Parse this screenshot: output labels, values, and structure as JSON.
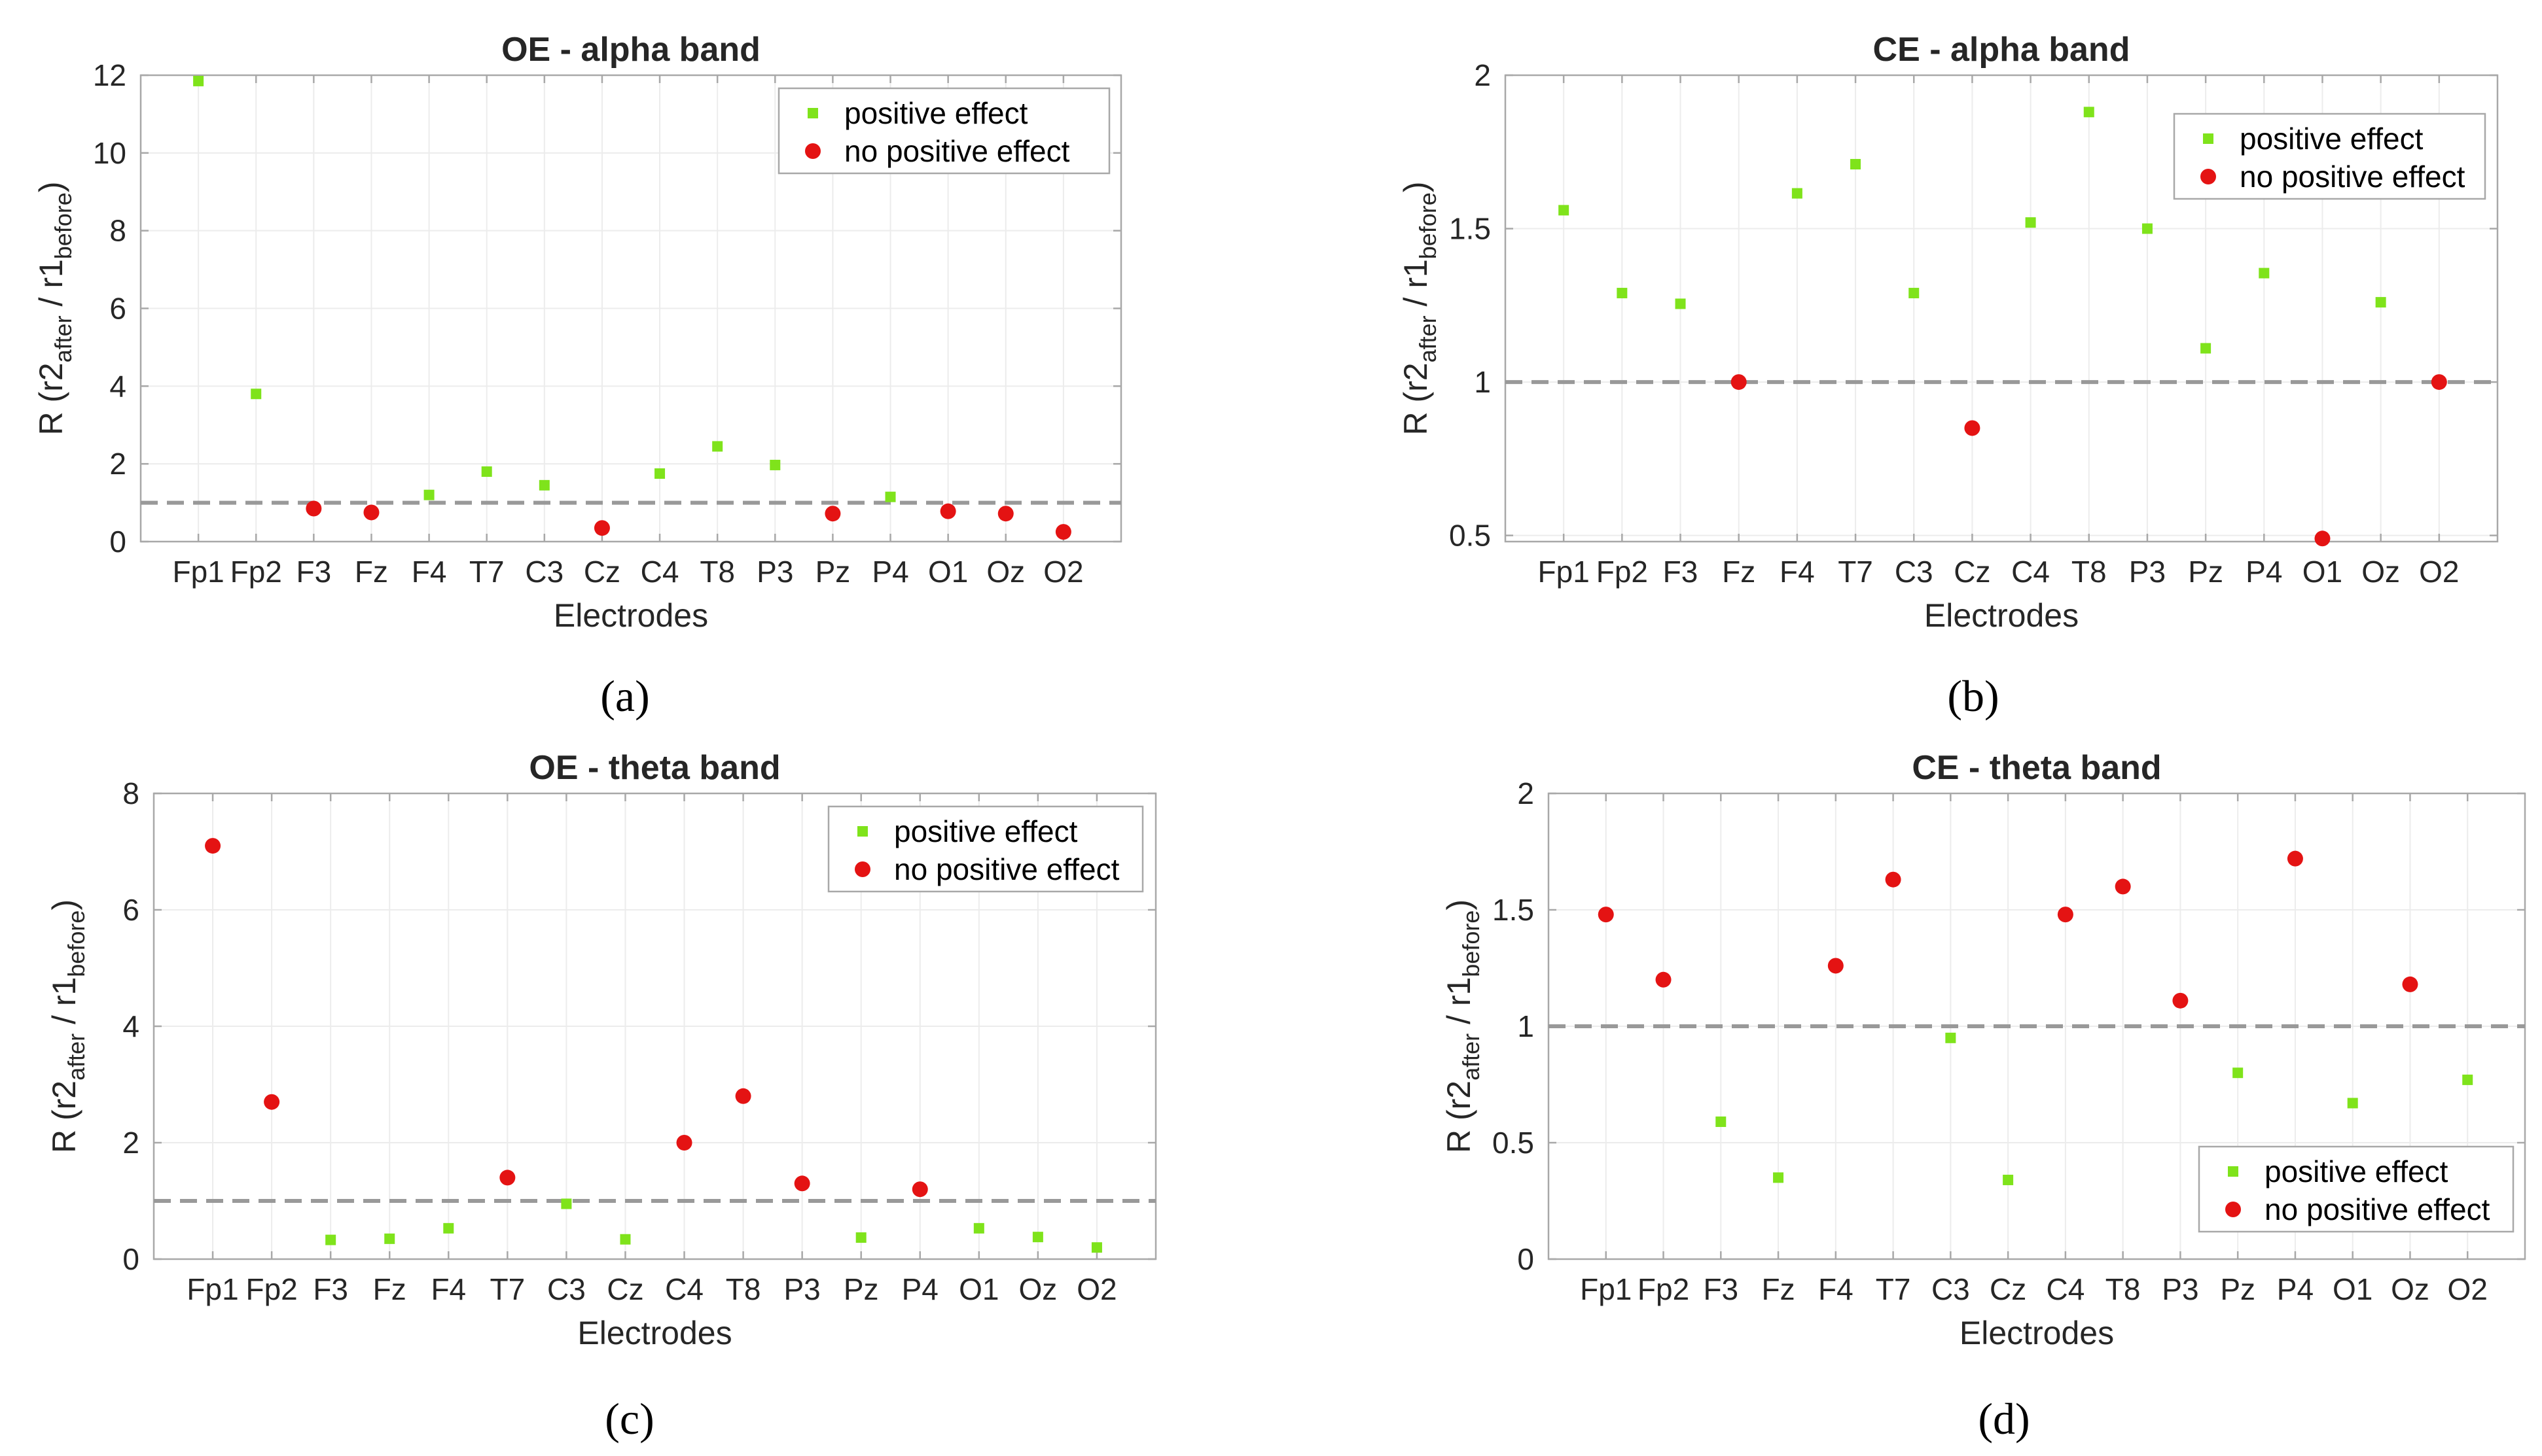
{
  "figure": {
    "captions": [
      "(a)",
      "(b)",
      "(c)",
      "(d)"
    ]
  },
  "colors": {
    "positive": "#7fe31b",
    "negative": "#e41313",
    "reference_line": "#999999",
    "grid": "#ececec",
    "axis": "#a8a8a8",
    "text": "#262626"
  },
  "chart_data": [
    {
      "type": "scatter",
      "title": "OE - alpha band",
      "xlabel": "Electrodes",
      "ylabel_parts": [
        "R (r2",
        "after",
        " / r1",
        "before",
        ")"
      ],
      "categories": [
        "Fp1",
        "Fp2",
        "F3",
        "Fz",
        "F4",
        "T7",
        "C3",
        "Cz",
        "C4",
        "T8",
        "P3",
        "Pz",
        "P4",
        "O1",
        "Oz",
        "O2"
      ],
      "ylim": [
        0,
        12
      ],
      "yticks": [
        0,
        2,
        4,
        6,
        8,
        10,
        12
      ],
      "ytick_labels": [
        "0",
        "2",
        "4",
        "6",
        "8",
        "10",
        "12"
      ],
      "reference": 1,
      "legend": [
        "positive effect",
        "no positive effect"
      ],
      "legend_position": "top-right",
      "series": [
        {
          "name": "positive effect",
          "marker": "square",
          "points": [
            [
              0,
              11.85
            ],
            [
              1,
              3.8
            ],
            [
              4,
              1.2
            ],
            [
              5,
              1.8
            ],
            [
              6,
              1.45
            ],
            [
              8,
              1.75
            ],
            [
              9,
              2.45
            ],
            [
              10,
              1.97
            ],
            [
              12,
              1.15
            ]
          ]
        },
        {
          "name": "no positive effect",
          "marker": "circle",
          "points": [
            [
              2,
              0.85
            ],
            [
              3,
              0.75
            ],
            [
              7,
              0.35
            ],
            [
              11,
              0.72
            ],
            [
              13,
              0.78
            ],
            [
              14,
              0.72
            ],
            [
              15,
              0.25
            ]
          ]
        }
      ]
    },
    {
      "type": "scatter",
      "title": "CE - alpha band",
      "xlabel": "Electrodes",
      "ylabel_parts": [
        "R (r2",
        "after",
        " / r1",
        "before",
        ")"
      ],
      "categories": [
        "Fp1",
        "Fp2",
        "F3",
        "Fz",
        "F4",
        "T7",
        "C3",
        "Cz",
        "C4",
        "T8",
        "P3",
        "Pz",
        "P4",
        "O1",
        "Oz",
        "O2"
      ],
      "ylim": [
        0.48,
        2
      ],
      "yticks": [
        0.5,
        1,
        1.5,
        2
      ],
      "ytick_labels": [
        "0.5",
        "1",
        "1.5",
        "2"
      ],
      "reference": 1,
      "legend": [
        "positive effect",
        "no positive effect"
      ],
      "legend_position": "top-right",
      "series": [
        {
          "name": "positive effect",
          "marker": "square",
          "points": [
            [
              0,
              1.56
            ],
            [
              1,
              1.29
            ],
            [
              2,
              1.255
            ],
            [
              4,
              1.615
            ],
            [
              5,
              1.71
            ],
            [
              6,
              1.29
            ],
            [
              8,
              1.52
            ],
            [
              9,
              1.88
            ],
            [
              10,
              1.5
            ],
            [
              11,
              1.11
            ],
            [
              12,
              1.355
            ],
            [
              14,
              1.26
            ]
          ]
        },
        {
          "name": "no positive effect",
          "marker": "circle",
          "points": [
            [
              3,
              1.0
            ],
            [
              7,
              0.85
            ],
            [
              13,
              0.49
            ],
            [
              15,
              1.0
            ]
          ]
        }
      ]
    },
    {
      "type": "scatter",
      "title": "OE - theta band",
      "xlabel": "Electrodes",
      "ylabel_parts": [
        "R (r2",
        "after",
        " / r1",
        "before",
        ")"
      ],
      "categories": [
        "Fp1",
        "Fp2",
        "F3",
        "Fz",
        "F4",
        "T7",
        "C3",
        "Cz",
        "C4",
        "T8",
        "P3",
        "Pz",
        "P4",
        "O1",
        "Oz",
        "O2"
      ],
      "ylim": [
        0,
        8
      ],
      "yticks": [
        0,
        2,
        4,
        6,
        8
      ],
      "ytick_labels": [
        "0",
        "2",
        "4",
        "6",
        "8"
      ],
      "reference": 1,
      "legend": [
        "positive effect",
        "no positive effect"
      ],
      "legend_position": "top-right",
      "series": [
        {
          "name": "positive effect",
          "marker": "square",
          "points": [
            [
              2,
              0.33
            ],
            [
              3,
              0.35
            ],
            [
              4,
              0.53
            ],
            [
              6,
              0.95
            ],
            [
              7,
              0.34
            ],
            [
              11,
              0.37
            ],
            [
              13,
              0.53
            ],
            [
              14,
              0.38
            ],
            [
              15,
              0.2
            ]
          ]
        },
        {
          "name": "no positive effect",
          "marker": "circle",
          "points": [
            [
              0,
              7.1
            ],
            [
              1,
              2.7
            ],
            [
              5,
              1.4
            ],
            [
              8,
              2.0
            ],
            [
              9,
              2.8
            ],
            [
              10,
              1.3
            ],
            [
              12,
              1.2
            ]
          ]
        }
      ]
    },
    {
      "type": "scatter",
      "title": "CE - theta band",
      "xlabel": "Electrodes",
      "ylabel_parts": [
        "R (r2",
        "after",
        " / r1",
        "before",
        ")"
      ],
      "categories": [
        "Fp1",
        "Fp2",
        "F3",
        "Fz",
        "F4",
        "T7",
        "C3",
        "Cz",
        "C4",
        "T8",
        "P3",
        "Pz",
        "P4",
        "O1",
        "Oz",
        "O2"
      ],
      "ylim": [
        0,
        2
      ],
      "yticks": [
        0,
        0.5,
        1,
        1.5,
        2
      ],
      "ytick_labels": [
        "0",
        "0.5",
        "1",
        "1.5",
        "2"
      ],
      "reference": 1,
      "legend": [
        "positive effect",
        "no positive effect"
      ],
      "legend_position": "bottom-right",
      "series": [
        {
          "name": "positive effect",
          "marker": "square",
          "points": [
            [
              2,
              0.59
            ],
            [
              3,
              0.35
            ],
            [
              6,
              0.95
            ],
            [
              7,
              0.34
            ],
            [
              11,
              0.8
            ],
            [
              13,
              0.67
            ],
            [
              15,
              0.77
            ]
          ]
        },
        {
          "name": "no positive effect",
          "marker": "circle",
          "points": [
            [
              0,
              1.48
            ],
            [
              1,
              1.2
            ],
            [
              4,
              1.26
            ],
            [
              5,
              1.63
            ],
            [
              8,
              1.48
            ],
            [
              9,
              1.6
            ],
            [
              10,
              1.11
            ],
            [
              12,
              1.72
            ],
            [
              14,
              1.18
            ]
          ]
        }
      ]
    }
  ]
}
